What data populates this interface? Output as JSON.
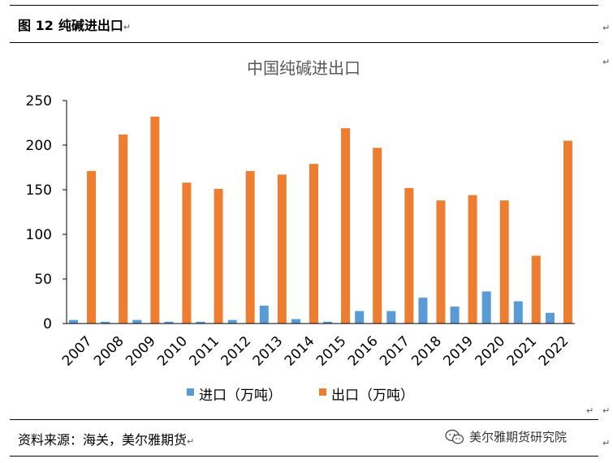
{
  "figure": {
    "label": "图 12",
    "title": "纯碱进出口",
    "paragraph_mark": "↵"
  },
  "chart_data": {
    "type": "bar",
    "title": "中国纯碱进出口",
    "categories": [
      "2007",
      "2008",
      "2009",
      "2010",
      "2011",
      "2012",
      "2013",
      "2014",
      "2015",
      "2016",
      "2017",
      "2018",
      "2019",
      "2020",
      "2021",
      "2022"
    ],
    "series": [
      {
        "name": "进口（万吨）",
        "color": "#5B9BD5",
        "values": [
          4,
          2,
          4,
          2,
          2,
          4,
          20,
          5,
          2,
          14,
          14,
          29,
          19,
          36,
          25,
          12
        ]
      },
      {
        "name": "出口（万吨）",
        "color": "#ED7D31",
        "values": [
          171,
          212,
          232,
          158,
          151,
          171,
          167,
          179,
          219,
          197,
          152,
          138,
          144,
          138,
          76,
          205
        ]
      }
    ],
    "ylim": [
      0,
      250
    ],
    "yticks": [
      0,
      50,
      100,
      150,
      200,
      250
    ],
    "xlabel": "",
    "ylabel": "",
    "legend_position": "bottom"
  },
  "footer": {
    "source": "资料来源：海关，美尔雅期货",
    "watermark": "美尔雅期货研究院",
    "watermark_icon": "wechat-icon"
  }
}
